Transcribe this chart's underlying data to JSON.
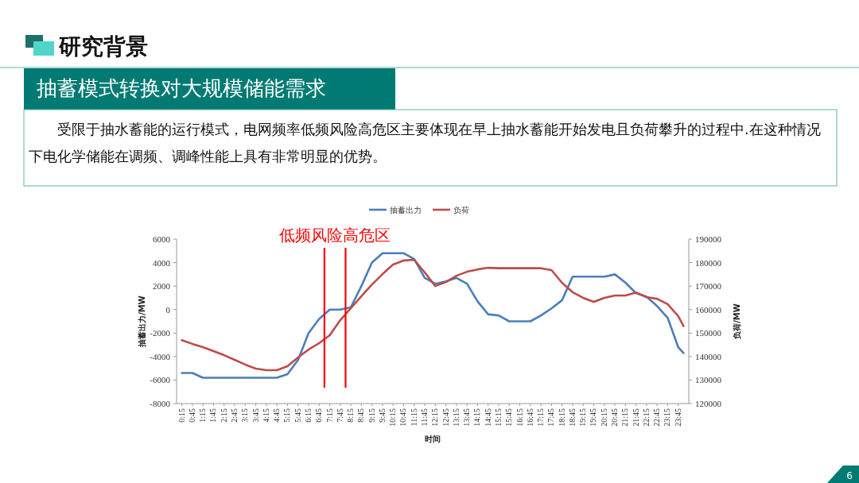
{
  "chart_data": {
    "type": "line",
    "title": "研究背景",
    "subtitle": "抽蓄模式转换对大规模储能需求",
    "xlabel": "时间",
    "ylabel": "抽蓄出力/MW",
    "y2label": "负荷/MW",
    "annotations": [
      "受限于抽水蓄能的运行模式，电网频率低频风险高危区主要体现在早上抽水蓄能开始发电且负荷攀升的过程中.在这种情况下电化学储能在调频、调峰性能上具有非常明显的优势。",
      "6",
      "低频风险高危区"
    ],
    "x": [
      0.25,
      0.75,
      1.25,
      1.75,
      2.25,
      2.75,
      3.25,
      3.75,
      4.25,
      4.75,
      5.25,
      5.75,
      6.25,
      6.75,
      7.25,
      7.75,
      8.25,
      8.75,
      9.25,
      9.75,
      10.25,
      10.75,
      11.25,
      11.75,
      12.25,
      12.75,
      13.25,
      13.75,
      14.25,
      14.75,
      15.25,
      15.75,
      16.25,
      16.75,
      17.25,
      17.75,
      18.25,
      18.75,
      19.25,
      19.75,
      20.25,
      20.75,
      21.25,
      21.75,
      22.25,
      22.75,
      23.25,
      23.75,
      24
    ],
    "series": [
      {
        "name": "抽蓄出力",
        "color": "#4a7ebb",
        "values": [
          -5400,
          -5400,
          -5800,
          -5800,
          -5800,
          -5800,
          -5800,
          -5800,
          -5800,
          -5800,
          -5500,
          -4300,
          -2000,
          -800,
          0,
          0,
          200,
          2000,
          4000,
          4800,
          4800,
          4800,
          4300,
          2700,
          2200,
          2400,
          2700,
          2200,
          700,
          -400,
          -500,
          -1000,
          -1000,
          -1000,
          -500,
          100,
          800,
          2800,
          2800,
          2800,
          2800,
          3000,
          2300,
          1400,
          1100,
          300,
          -700,
          -3200,
          -3700
        ]
      },
      {
        "name": "负荷",
        "color": "#be4b48",
        "axis": "y2",
        "values": [
          147000,
          145400,
          144000,
          142300,
          140600,
          138600,
          136600,
          134900,
          134200,
          134200,
          135900,
          139600,
          143000,
          145700,
          149100,
          155500,
          160600,
          165700,
          170700,
          175100,
          179200,
          180900,
          181200,
          175800,
          170000,
          171700,
          174400,
          176100,
          177100,
          177800,
          177600,
          177600,
          177600,
          177600,
          177600,
          176800,
          171400,
          167400,
          165000,
          163300,
          165000,
          166000,
          166000,
          167300,
          165300,
          164600,
          162300,
          157200,
          153000
        ]
      }
    ],
    "xlim": [
      0,
      24.25
    ],
    "xticks": [
      {
        "value": 0.25,
        "label": "0:15"
      },
      {
        "value": 0.75,
        "label": "0:45"
      },
      {
        "value": 1.25,
        "label": "1:15"
      },
      {
        "value": 1.75,
        "label": "1:45"
      },
      {
        "value": 2.25,
        "label": "2:15"
      },
      {
        "value": 2.75,
        "label": "2:45"
      },
      {
        "value": 3.25,
        "label": "3:15"
      },
      {
        "value": 3.75,
        "label": "3:45"
      },
      {
        "value": 4.25,
        "label": "4:15"
      },
      {
        "value": 4.75,
        "label": "4:45"
      },
      {
        "value": 5.25,
        "label": "5:15"
      },
      {
        "value": 5.75,
        "label": "5:45"
      },
      {
        "value": 6.25,
        "label": "6:15"
      },
      {
        "value": 6.75,
        "label": "6:45"
      },
      {
        "value": 7.25,
        "label": "7:15"
      },
      {
        "value": 7.75,
        "label": "7:45"
      },
      {
        "value": 8.25,
        "label": "8:15"
      },
      {
        "value": 8.75,
        "label": "8:45"
      },
      {
        "value": 9.25,
        "label": "9:15"
      },
      {
        "value": 9.75,
        "label": "9:45"
      },
      {
        "value": 10.25,
        "label": "10:15"
      },
      {
        "value": 10.75,
        "label": "10:45"
      },
      {
        "value": 11.25,
        "label": "11:15"
      },
      {
        "value": 11.75,
        "label": "11:45"
      },
      {
        "value": 12.25,
        "label": "12:15"
      },
      {
        "value": 12.75,
        "label": "12:45"
      },
      {
        "value": 13.25,
        "label": "13:15"
      },
      {
        "value": 13.75,
        "label": "13:45"
      },
      {
        "value": 14.25,
        "label": "14:15"
      },
      {
        "value": 14.75,
        "label": "14:45"
      },
      {
        "value": 15.25,
        "label": "15:15"
      },
      {
        "value": 15.75,
        "label": "15:45"
      },
      {
        "value": 16.25,
        "label": "16:15"
      },
      {
        "value": 16.75,
        "label": "16:45"
      },
      {
        "value": 17.25,
        "label": "17:15"
      },
      {
        "value": 17.75,
        "label": "17:45"
      },
      {
        "value": 18.25,
        "label": "18:15"
      },
      {
        "value": 18.75,
        "label": "18:45"
      },
      {
        "value": 19.25,
        "label": "19:15"
      },
      {
        "value": 19.75,
        "label": "19:45"
      },
      {
        "value": 20.25,
        "label": "20:15"
      },
      {
        "value": 20.75,
        "label": "20:45"
      },
      {
        "value": 21.25,
        "label": "21:15"
      },
      {
        "value": 21.75,
        "label": "21:45"
      },
      {
        "value": 22.25,
        "label": "22:15"
      },
      {
        "value": 22.75,
        "label": "22:45"
      },
      {
        "value": 23.25,
        "label": "23:15"
      },
      {
        "value": 23.75,
        "label": "23:45"
      }
    ],
    "ylim": [
      -8000,
      6000
    ],
    "yticks": [
      -8000,
      -6000,
      -4000,
      -2000,
      0,
      2000,
      4000,
      6000
    ],
    "y2lim": [
      120000,
      190000
    ],
    "y2ticks": [
      120000,
      130000,
      140000,
      150000,
      160000,
      170000,
      180000,
      190000
    ],
    "ref_lines": [
      {
        "axis": "x",
        "value": 7,
        "color": "#ff0000"
      },
      {
        "axis": "x",
        "value": 8,
        "color": "#ff0000"
      }
    ],
    "legend": "top",
    "grid": false,
    "marker": "none",
    "line_style": "solid"
  }
}
